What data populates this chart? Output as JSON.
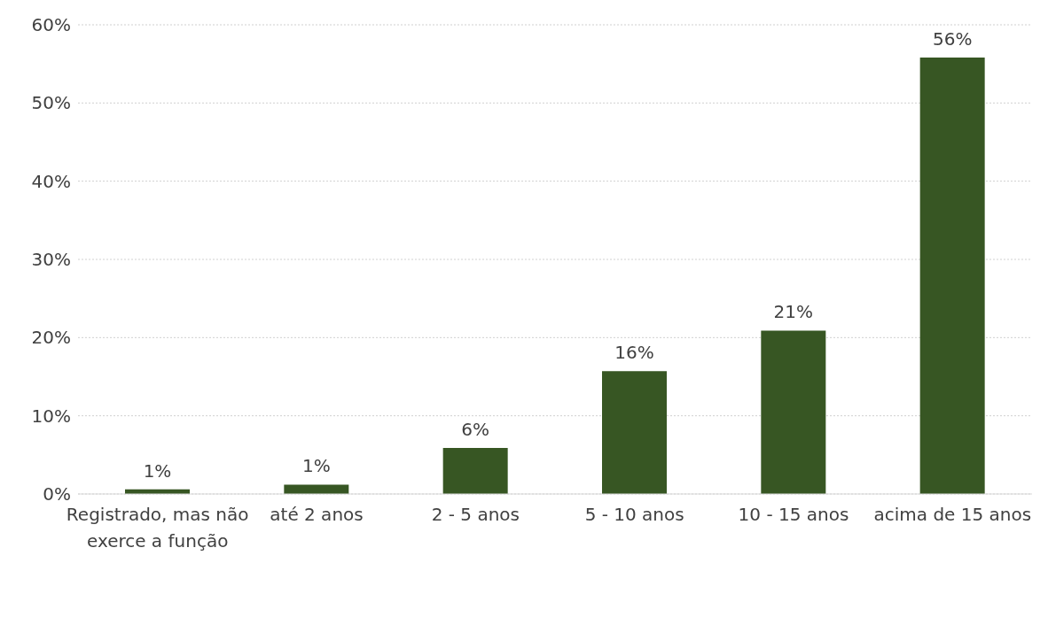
{
  "chart_data": {
    "type": "bar",
    "categories": [
      "Registrado, mas não exerce a função",
      "até 2 anos",
      "2 - 5 anos",
      "5 - 10 anos",
      "10 - 15 anos",
      "acima de 15 anos"
    ],
    "values": [
      0.6,
      1.2,
      5.9,
      15.7,
      20.9,
      55.8
    ],
    "value_labels": [
      "1%",
      "1%",
      "6%",
      "16%",
      "21%",
      "56%"
    ],
    "color": "#375623",
    "ylim": [
      0,
      60
    ],
    "yticks": [
      {
        "value": 0,
        "label": "0%"
      },
      {
        "value": 10,
        "label": "10%"
      },
      {
        "value": 20,
        "label": "20%"
      },
      {
        "value": 30,
        "label": "30%"
      },
      {
        "value": 40,
        "label": "40%"
      },
      {
        "value": 50,
        "label": "50%"
      },
      {
        "value": 60,
        "label": "60%"
      }
    ],
    "grid": "y",
    "legend": false
  }
}
